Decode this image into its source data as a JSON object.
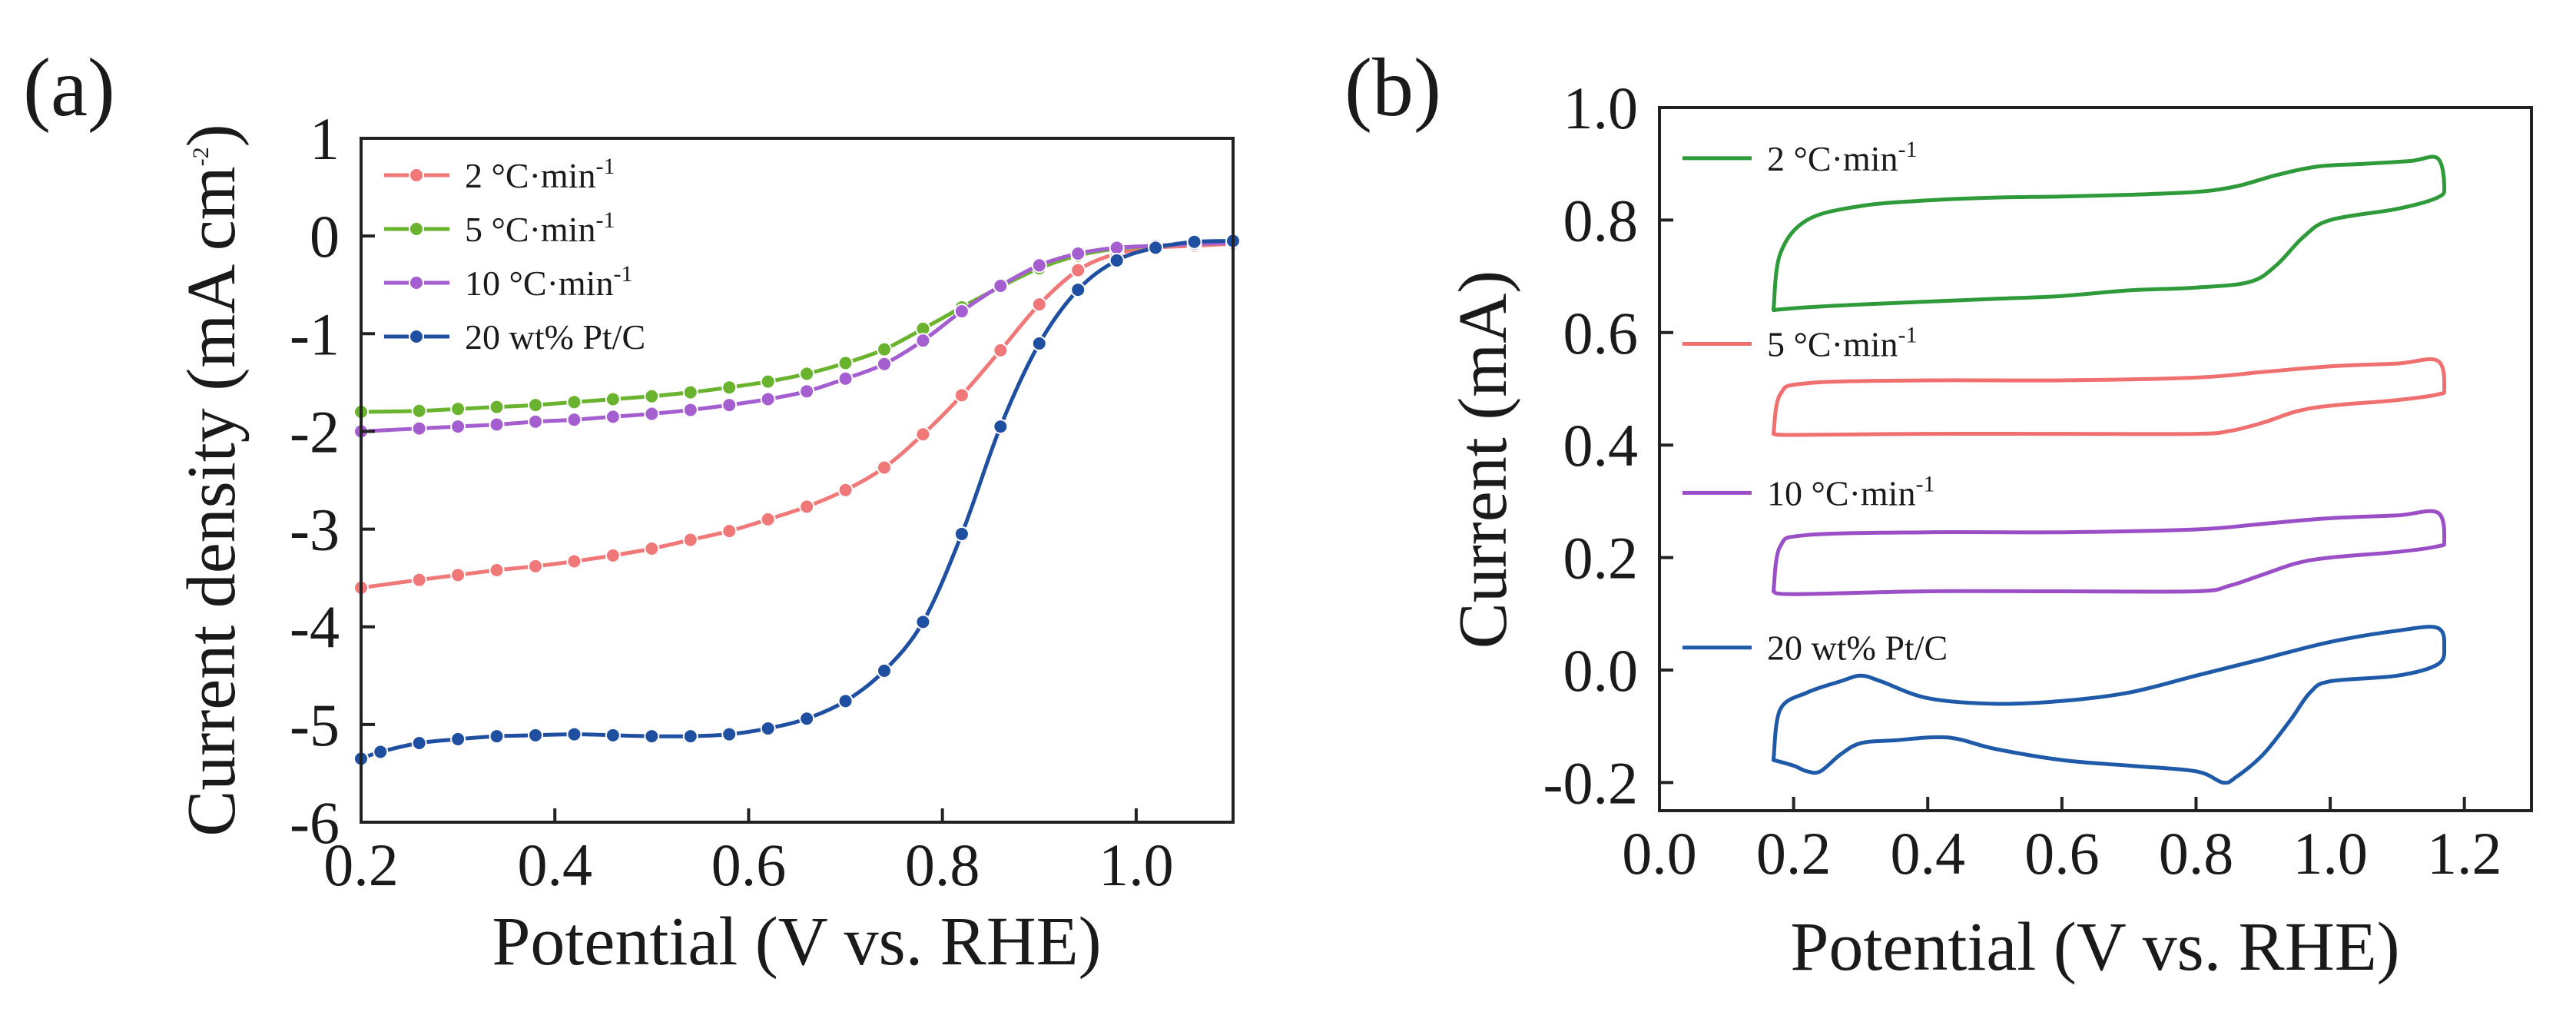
{
  "figure": {
    "panel_a_label": "(a)",
    "panel_b_label": "(b)"
  },
  "chart_data": [
    {
      "panel": "(a)",
      "type": "line",
      "title": "",
      "xlabel": "Potential (V vs. RHE)",
      "ylabel_main": "Current density (mA cm",
      "ylabel_sup": "-2",
      "ylabel_close": ")",
      "xlim": [
        0.2,
        1.1
      ],
      "ylim": [
        -6,
        1
      ],
      "xticks": [
        0.2,
        0.4,
        0.6,
        0.8,
        1.0
      ],
      "xtick_labels": [
        "0.2",
        "0.4",
        "0.6",
        "0.8",
        "1.0"
      ],
      "yticks": [
        1,
        0,
        -1,
        -2,
        -3,
        -4,
        -5,
        -6
      ],
      "ytick_labels": [
        "1",
        "0",
        "-1",
        "-2",
        "-3",
        "-4",
        "-5",
        "-6"
      ],
      "grid": false,
      "legend_position": "top-left",
      "series": [
        {
          "name": "2 °C·min",
          "name_sup": "-1",
          "color": "#f07878",
          "x": [
            0.2,
            0.26,
            0.3,
            0.34,
            0.38,
            0.42,
            0.46,
            0.5,
            0.54,
            0.58,
            0.62,
            0.66,
            0.7,
            0.74,
            0.78,
            0.82,
            0.86,
            0.9,
            0.94,
            0.98,
            1.02,
            1.06,
            1.1
          ],
          "y": [
            -3.6,
            -3.52,
            -3.47,
            -3.42,
            -3.38,
            -3.33,
            -3.27,
            -3.2,
            -3.11,
            -3.02,
            -2.9,
            -2.77,
            -2.6,
            -2.37,
            -2.03,
            -1.63,
            -1.17,
            -0.7,
            -0.35,
            -0.18,
            -0.12,
            -0.1,
            -0.08
          ]
        },
        {
          "name": "5 °C·min",
          "name_sup": "-1",
          "color": "#6ab32e",
          "x": [
            0.2,
            0.26,
            0.3,
            0.34,
            0.38,
            0.42,
            0.46,
            0.5,
            0.54,
            0.58,
            0.62,
            0.66,
            0.7,
            0.74,
            0.78,
            0.82,
            0.86,
            0.9,
            0.94,
            0.98,
            1.02,
            1.06,
            1.1
          ],
          "y": [
            -1.8,
            -1.79,
            -1.77,
            -1.75,
            -1.73,
            -1.7,
            -1.67,
            -1.64,
            -1.6,
            -1.55,
            -1.49,
            -1.41,
            -1.3,
            -1.16,
            -0.95,
            -0.73,
            -0.52,
            -0.33,
            -0.2,
            -0.13,
            -0.1,
            -0.08,
            -0.07
          ]
        },
        {
          "name": "10 °C·min",
          "name_sup": "-1",
          "color": "#a55ed0",
          "x": [
            0.2,
            0.26,
            0.3,
            0.34,
            0.38,
            0.42,
            0.46,
            0.5,
            0.54,
            0.58,
            0.62,
            0.66,
            0.7,
            0.74,
            0.78,
            0.82,
            0.86,
            0.9,
            0.94,
            0.98,
            1.02,
            1.06,
            1.1
          ],
          "y": [
            -2.0,
            -1.97,
            -1.95,
            -1.93,
            -1.9,
            -1.88,
            -1.85,
            -1.82,
            -1.78,
            -1.73,
            -1.67,
            -1.59,
            -1.46,
            -1.31,
            -1.07,
            -0.77,
            -0.51,
            -0.3,
            -0.18,
            -0.12,
            -0.1,
            -0.08,
            -0.07
          ]
        },
        {
          "name": "20 wt% Pt/C",
          "name_sup": "",
          "color": "#1f4fa0",
          "x": [
            0.2,
            0.22,
            0.26,
            0.3,
            0.34,
            0.38,
            0.42,
            0.46,
            0.5,
            0.54,
            0.58,
            0.62,
            0.66,
            0.7,
            0.74,
            0.78,
            0.82,
            0.86,
            0.9,
            0.94,
            0.98,
            1.02,
            1.06,
            1.1
          ],
          "y": [
            -5.35,
            -5.28,
            -5.19,
            -5.15,
            -5.12,
            -5.11,
            -5.1,
            -5.11,
            -5.12,
            -5.12,
            -5.1,
            -5.04,
            -4.94,
            -4.76,
            -4.45,
            -3.95,
            -3.05,
            -1.95,
            -1.1,
            -0.55,
            -0.25,
            -0.12,
            -0.06,
            -0.05
          ]
        }
      ]
    },
    {
      "panel": "(b)",
      "type": "line",
      "title": "",
      "xlabel": "Potential (V vs. RHE)",
      "ylabel": "Current  (mA)",
      "xlim": [
        0.0,
        1.3
      ],
      "ylim": [
        -0.25,
        1.0
      ],
      "xticks": [
        0.0,
        0.2,
        0.4,
        0.6,
        0.8,
        1.0,
        1.2
      ],
      "xtick_labels": [
        "0.0",
        "0.2",
        "0.4",
        "0.6",
        "0.8",
        "1.0",
        "1.2"
      ],
      "yticks": [
        1.0,
        0.8,
        0.6,
        0.4,
        0.2,
        0.0,
        -0.2
      ],
      "ytick_labels": [
        "1.0",
        "0.8",
        "0.6",
        "0.4",
        "0.2",
        "0.0",
        "-0.2"
      ],
      "grid": false,
      "legend_position": "inline-left",
      "series": [
        {
          "name": "2 °C·min",
          "name_sup": "-1",
          "color": "#2e9a3a",
          "label_y": 0.91,
          "x": [
            0.17,
            0.18,
            0.22,
            0.3,
            0.4,
            0.5,
            0.6,
            0.7,
            0.8,
            0.86,
            0.92,
            0.98,
            1.05,
            1.12,
            1.16,
            1.17,
            1.16,
            1.1,
            1.0,
            0.96,
            0.92,
            0.88,
            0.8,
            0.7,
            0.6,
            0.5,
            0.4,
            0.3,
            0.22,
            0.17
          ],
          "y": [
            0.64,
            0.74,
            0.8,
            0.825,
            0.835,
            0.84,
            0.842,
            0.845,
            0.85,
            0.86,
            0.88,
            0.895,
            0.9,
            0.905,
            0.91,
            0.86,
            0.84,
            0.82,
            0.8,
            0.77,
            0.72,
            0.69,
            0.68,
            0.675,
            0.665,
            0.66,
            0.655,
            0.65,
            0.645,
            0.64
          ]
        },
        {
          "name": "5 °C·min",
          "name_sup": "-1",
          "color": "#f07070",
          "label_y": 0.58,
          "x": [
            0.17,
            0.18,
            0.22,
            0.4,
            0.6,
            0.8,
            0.9,
            1.0,
            1.1,
            1.16,
            1.17,
            1.16,
            1.1,
            1.0,
            0.95,
            0.9,
            0.85,
            0.8,
            0.6,
            0.4,
            0.2,
            0.17
          ],
          "y": [
            0.42,
            0.49,
            0.51,
            0.515,
            0.515,
            0.52,
            0.53,
            0.54,
            0.545,
            0.55,
            0.5,
            0.49,
            0.48,
            0.47,
            0.46,
            0.44,
            0.425,
            0.42,
            0.42,
            0.42,
            0.418,
            0.42
          ]
        },
        {
          "name": "10 °C·min",
          "name_sup": "-1",
          "color": "#9b4fc6",
          "label_y": 0.315,
          "x": [
            0.17,
            0.18,
            0.22,
            0.4,
            0.6,
            0.8,
            0.9,
            1.0,
            1.1,
            1.16,
            1.17,
            1.16,
            1.1,
            1.0,
            0.95,
            0.9,
            0.85,
            0.8,
            0.6,
            0.4,
            0.2,
            0.17
          ],
          "y": [
            0.14,
            0.22,
            0.24,
            0.245,
            0.245,
            0.25,
            0.26,
            0.27,
            0.275,
            0.28,
            0.23,
            0.22,
            0.21,
            0.2,
            0.19,
            0.17,
            0.15,
            0.14,
            0.14,
            0.14,
            0.135,
            0.14
          ]
        },
        {
          "name": "20 wt% Pt/C",
          "name_sup": "",
          "color": "#1f5aa8",
          "label_y": 0.04,
          "x": [
            0.17,
            0.18,
            0.22,
            0.27,
            0.3,
            0.33,
            0.4,
            0.5,
            0.6,
            0.7,
            0.8,
            0.9,
            1.0,
            1.1,
            1.16,
            1.17,
            1.16,
            1.1,
            1.0,
            0.97,
            0.94,
            0.9,
            0.86,
            0.84,
            0.8,
            0.7,
            0.6,
            0.5,
            0.43,
            0.35,
            0.3,
            0.27,
            0.24,
            0.22,
            0.2,
            0.17
          ],
          "y": [
            -0.16,
            -0.07,
            -0.04,
            -0.02,
            -0.01,
            -0.02,
            -0.05,
            -0.06,
            -0.055,
            -0.04,
            -0.01,
            0.02,
            0.05,
            0.07,
            0.075,
            0.04,
            0.01,
            -0.01,
            -0.02,
            -0.04,
            -0.09,
            -0.15,
            -0.19,
            -0.2,
            -0.18,
            -0.17,
            -0.16,
            -0.14,
            -0.12,
            -0.125,
            -0.13,
            -0.15,
            -0.18,
            -0.18,
            -0.17,
            -0.16
          ]
        }
      ]
    }
  ]
}
